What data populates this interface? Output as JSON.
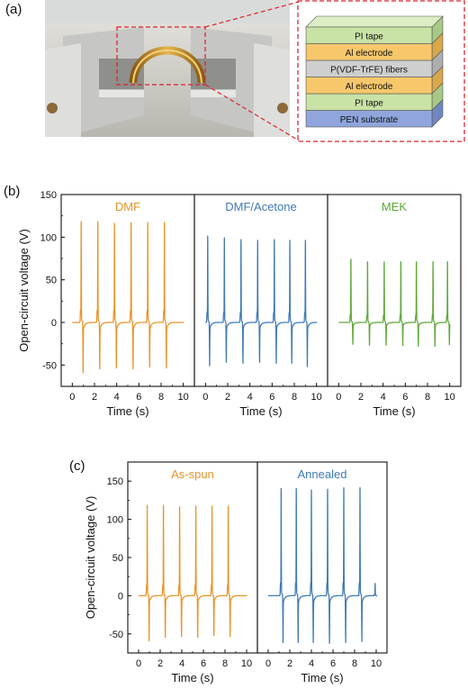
{
  "panels": {
    "a": "(a)",
    "b": "(b)",
    "c": "(c)"
  },
  "stack_layers": [
    {
      "label": "PI tape",
      "color": "#c9e2a6",
      "side": "#a7c985",
      "top": "#dcefc4"
    },
    {
      "label": "Al electrode",
      "color": "#f6c86b",
      "side": "#d9a84c",
      "top": "#fbdb94"
    },
    {
      "label": "P(VDF-TrFE) fibers",
      "color": "#cfcfcf",
      "side": "#aeaeae",
      "top": "#e1e1e1"
    },
    {
      "label": "Al electrode",
      "color": "#f6c86b",
      "side": "#d9a84c",
      "top": "#fbdb94"
    },
    {
      "label": "PI tape",
      "color": "#c9e2a6",
      "side": "#a7c985",
      "top": "#dcefc4"
    },
    {
      "label": "PEN substrate",
      "color": "#8fa5dc",
      "side": "#6f86c0",
      "top": "#b0c1e8"
    }
  ],
  "colors": {
    "orange": "#e8942a",
    "blue": "#3f7ab5",
    "green": "#5fa83b",
    "highlight": "#d8262e"
  },
  "chart_data": [
    {
      "type": "line",
      "panel": "b",
      "ylabel": "Open-circuit voltage (V)",
      "ylim": [
        -75,
        150
      ],
      "yticks": [
        -50,
        0,
        50,
        100,
        150
      ],
      "subplots": [
        {
          "title": "DMF",
          "color": "#e8942a",
          "xlabel": "Time (s)",
          "xlim": [
            -1,
            11
          ],
          "xticks": [
            0,
            2,
            4,
            6,
            8,
            10
          ],
          "peaks": [
            {
              "t": 0.8,
              "pos": 118,
              "neg": -50
            },
            {
              "t": 2.3,
              "pos": 118,
              "neg": -49
            },
            {
              "t": 3.8,
              "pos": 116,
              "neg": -48
            },
            {
              "t": 5.3,
              "pos": 117,
              "neg": -49
            },
            {
              "t": 6.8,
              "pos": 117,
              "neg": -47
            },
            {
              "t": 8.3,
              "pos": 117,
              "neg": -48
            }
          ]
        },
        {
          "title": "DMF/Acetone",
          "color": "#3f7ab5",
          "xlabel": "Time (s)",
          "xlim": [
            -1,
            11
          ],
          "xticks": [
            0,
            2,
            4,
            6,
            8,
            10
          ],
          "peaks": [
            {
              "t": 0.2,
              "pos": 101,
              "neg": -43
            },
            {
              "t": 1.7,
              "pos": 99,
              "neg": -42
            },
            {
              "t": 3.2,
              "pos": 97,
              "neg": -43
            },
            {
              "t": 4.7,
              "pos": 96,
              "neg": -42
            },
            {
              "t": 6.2,
              "pos": 97,
              "neg": -43
            },
            {
              "t": 7.6,
              "pos": 96,
              "neg": -43
            },
            {
              "t": 9.0,
              "pos": 96,
              "neg": -44
            }
          ]
        },
        {
          "title": "MEK",
          "color": "#5fa83b",
          "xlabel": "Time (s)",
          "xlim": [
            -1,
            11
          ],
          "xticks": [
            0,
            2,
            4,
            6,
            8,
            10
          ],
          "peaks": [
            {
              "t": 1.1,
              "pos": 74,
              "neg": -23
            },
            {
              "t": 2.6,
              "pos": 71,
              "neg": -24
            },
            {
              "t": 4.1,
              "pos": 71,
              "neg": -24
            },
            {
              "t": 5.6,
              "pos": 71,
              "neg": -24
            },
            {
              "t": 7.0,
              "pos": 71,
              "neg": -25
            },
            {
              "t": 8.5,
              "pos": 71,
              "neg": -25
            },
            {
              "t": 9.8,
              "pos": 71,
              "neg": -22
            }
          ]
        }
      ]
    },
    {
      "type": "line",
      "panel": "c",
      "ylabel": "Open-circuit voltage (V)",
      "ylim": [
        -75,
        175
      ],
      "yticks": [
        -50,
        0,
        50,
        100,
        150
      ],
      "subplots": [
        {
          "title": "As-spun",
          "color": "#e8942a",
          "xlabel": "Time (s)",
          "xlim": [
            -1,
            11
          ],
          "xticks": [
            0,
            2,
            4,
            6,
            8,
            10
          ],
          "peaks": [
            {
              "t": 0.8,
              "pos": 118,
              "neg": -50
            },
            {
              "t": 2.3,
              "pos": 118,
              "neg": -49
            },
            {
              "t": 3.8,
              "pos": 116,
              "neg": -48
            },
            {
              "t": 5.3,
              "pos": 117,
              "neg": -49
            },
            {
              "t": 6.8,
              "pos": 117,
              "neg": -47
            },
            {
              "t": 8.3,
              "pos": 117,
              "neg": -48
            }
          ]
        },
        {
          "title": "Annealed",
          "color": "#3f7ab5",
          "xlabel": "Time (s)",
          "xlim": [
            -1,
            11
          ],
          "xticks": [
            0,
            2,
            4,
            6,
            8,
            10
          ],
          "peaks": [
            {
              "t": 1.2,
              "pos": 140,
              "neg": -55
            },
            {
              "t": 2.6,
              "pos": 140,
              "neg": -55
            },
            {
              "t": 4.0,
              "pos": 138,
              "neg": -55
            },
            {
              "t": 5.5,
              "pos": 139,
              "neg": -56
            },
            {
              "t": 7.0,
              "pos": 141,
              "neg": -55
            },
            {
              "t": 8.5,
              "pos": 141,
              "neg": -54
            },
            {
              "t": 9.9,
              "pos": 16,
              "neg": -5
            }
          ]
        }
      ]
    }
  ]
}
